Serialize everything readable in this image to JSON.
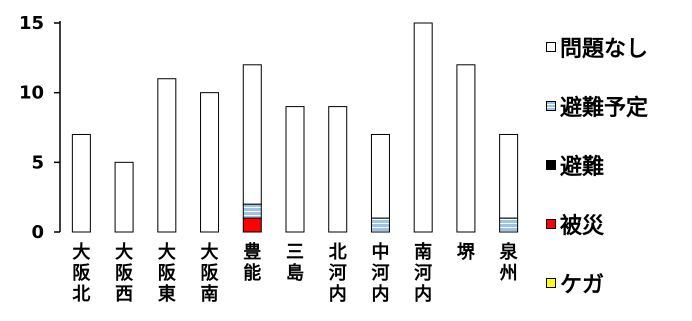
{
  "chart_data": {
    "type": "bar",
    "stacked": true,
    "categories": [
      "大阪北",
      "大阪西",
      "大阪東",
      "大阪南",
      "豊能",
      "三島",
      "北河内",
      "中河内",
      "南河内",
      "堺",
      "泉州"
    ],
    "series": [
      {
        "name": "ケガ",
        "color": "#ffff00",
        "values": [
          0,
          0,
          0,
          0,
          0,
          0,
          0,
          0,
          0,
          0,
          0
        ]
      },
      {
        "name": "被災",
        "color": "#ff0000",
        "values": [
          0,
          0,
          0,
          0,
          1,
          0,
          0,
          0,
          0,
          0,
          0
        ]
      },
      {
        "name": "避難",
        "color": "#000000",
        "values": [
          0,
          0,
          0,
          0,
          0,
          0,
          0,
          0,
          0,
          0,
          0
        ]
      },
      {
        "name": "避難予定",
        "color": "#9dc3e6",
        "values": [
          0,
          0,
          0,
          0,
          1,
          0,
          0,
          1,
          0,
          0,
          1
        ]
      },
      {
        "name": "問題なし",
        "color": "#ffffff",
        "values": [
          7,
          5,
          11,
          10,
          10,
          9,
          9,
          6,
          15,
          12,
          6
        ]
      }
    ],
    "yticks": [
      0,
      5,
      10,
      15
    ],
    "ylim": [
      0,
      15
    ],
    "legend_position": "right",
    "title": "",
    "xlabel": "",
    "ylabel": ""
  },
  "legend": [
    {
      "label": "問題なし",
      "color": "#ffffff"
    },
    {
      "label": "避難予定",
      "color": "#9dc3e6"
    },
    {
      "label": "避難",
      "color": "#000000"
    },
    {
      "label": "被災",
      "color": "#ff0000"
    },
    {
      "label": "ケガ",
      "color": "#ffff00"
    }
  ]
}
